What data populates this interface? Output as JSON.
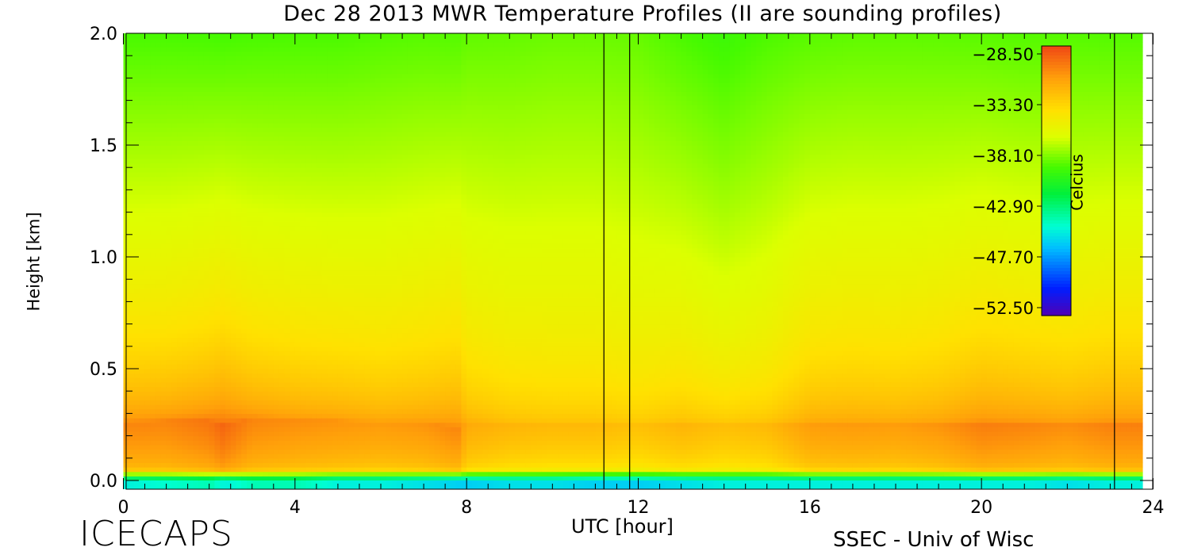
{
  "chart_data": {
    "type": "heatmap",
    "title": "Dec 28 2013 MWR Temperature Profiles (II are sounding profiles)",
    "xlabel": "UTC [hour]",
    "ylabel": "Height [km]",
    "xlim": [
      0,
      24
    ],
    "ylim": [
      0,
      2.0
    ],
    "x_ticks": [
      "0",
      "4",
      "8",
      "12",
      "16",
      "20",
      "24"
    ],
    "y_ticks": [
      "0.0",
      "0.5",
      "1.0",
      "1.5",
      "2.0"
    ],
    "colorbar": {
      "label": "Celcius",
      "ticks": [
        "-28.50",
        "-33.30",
        "-38.10",
        "-42.90",
        "-47.70",
        "-52.50"
      ],
      "min": -52.5,
      "max": -28.5
    },
    "sounding_times_utc": [
      11.2,
      11.8,
      23.1
    ],
    "data_gap_utc": [
      23.1,
      23.75
    ],
    "hours": [
      0,
      1,
      2,
      2.3,
      3,
      4,
      5,
      6,
      7,
      7.8,
      8,
      9,
      10,
      11,
      12,
      13,
      14,
      15,
      16,
      17,
      18,
      19,
      20,
      21,
      22,
      23
    ],
    "surface_temp_c": [
      -45.0,
      -44.5,
      -44.0,
      -45.0,
      -44.0,
      -44.0,
      -45.0,
      -45.0,
      -45.5,
      -46.0,
      -46.0,
      -45.5,
      -45.5,
      -46.0,
      -46.0,
      -45.5,
      -45.0,
      -45.0,
      -45.0,
      -45.0,
      -45.0,
      -45.0,
      -45.0,
      -45.0,
      -45.5,
      -45.0
    ],
    "inversion_peak_temp_c": [
      -30.5,
      -30.5,
      -30.0,
      -29.5,
      -30.5,
      -30.8,
      -31.0,
      -31.2,
      -31.0,
      -30.5,
      -31.8,
      -32.3,
      -32.5,
      -32.5,
      -32.8,
      -32.3,
      -32.7,
      -32.5,
      -31.3,
      -31.2,
      -31.3,
      -31.0,
      -30.3,
      -30.5,
      -30.8,
      -30.4
    ],
    "inversion_peak_height_km": [
      0.26,
      0.27,
      0.27,
      0.25,
      0.28,
      0.27,
      0.27,
      0.26,
      0.26,
      0.24,
      0.26,
      0.25,
      0.25,
      0.25,
      0.25,
      0.25,
      0.25,
      0.25,
      0.25,
      0.25,
      0.25,
      0.25,
      0.25,
      0.25,
      0.25,
      0.25
    ],
    "temp_at_2km_c": [
      -38.5,
      -38.5,
      -38.5,
      -38.5,
      -38.5,
      -38.5,
      -38.5,
      -38.4,
      -38.3,
      -38.3,
      -38.2,
      -38.2,
      -38.1,
      -38.1,
      -38.2,
      -38.6,
      -39.0,
      -38.6,
      -38.3,
      -38.2,
      -38.2,
      -38.2,
      -38.2,
      -38.3,
      -38.3,
      -38.3
    ]
  },
  "branding": {
    "left": "ICECAPS",
    "right": "SSEC - Univ of Wisc"
  }
}
